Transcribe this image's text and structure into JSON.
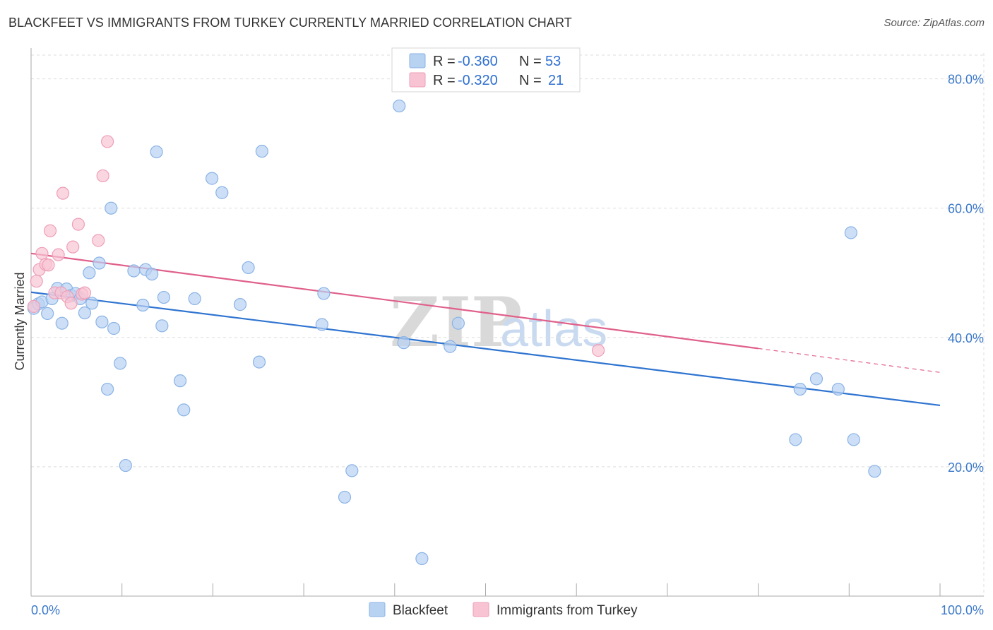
{
  "title": "BLACKFEET VS IMMIGRANTS FROM TURKEY CURRENTLY MARRIED CORRELATION CHART",
  "source": "Source: ZipAtlas.com",
  "watermark": {
    "zip": "ZIP",
    "atlas": "atlas"
  },
  "colors": {
    "blue_fill": "#b8d2f2",
    "blue_stroke": "#8ab3e6",
    "blue_line": "#2f74d0",
    "pink_fill": "#f8c4d4",
    "pink_stroke": "#ee9fb8",
    "pink_line": "#e0608a",
    "tick_text": "#3a78c9",
    "grid": "#dddddd"
  },
  "legend": {
    "series1": {
      "r_label": "R =",
      "r_value": "-0.360",
      "n_label": "N =",
      "n_value": "53"
    },
    "series2": {
      "r_label": "R =",
      "r_value": "-0.320",
      "n_label": "N =",
      "n_value": "21"
    }
  },
  "chart_data": {
    "type": "scatter",
    "title": "BLACKFEET VS IMMIGRANTS FROM TURKEY CURRENTLY MARRIED CORRELATION CHART",
    "xlabel": "",
    "ylabel": "Currently Married",
    "xlim": [
      0,
      100
    ],
    "ylim": [
      0,
      84
    ],
    "x_tick_labels": [
      "0.0%",
      "100.0%"
    ],
    "y_ticks": [
      20,
      40,
      60,
      80
    ],
    "y_tick_labels": [
      "20.0%",
      "40.0%",
      "60.0%",
      "80.0%"
    ],
    "grid": true,
    "legend_position": "top-center",
    "series": [
      {
        "name": "Blackfeet",
        "color": "#b8d2f2",
        "trend": {
          "x": [
            0,
            100
          ],
          "y": [
            47.0,
            29.5
          ]
        },
        "points": [
          {
            "x": 0.3,
            "y": 44.5
          },
          {
            "x": 0.8,
            "y": 45.2
          },
          {
            "x": 1.2,
            "y": 45.5
          },
          {
            "x": 1.8,
            "y": 43.7
          },
          {
            "x": 2.3,
            "y": 46.0
          },
          {
            "x": 2.9,
            "y": 47.6
          },
          {
            "x": 3.4,
            "y": 42.2
          },
          {
            "x": 3.9,
            "y": 47.5
          },
          {
            "x": 4.4,
            "y": 46.5
          },
          {
            "x": 4.9,
            "y": 46.8
          },
          {
            "x": 5.4,
            "y": 46.0
          },
          {
            "x": 5.9,
            "y": 43.8
          },
          {
            "x": 6.4,
            "y": 50.0
          },
          {
            "x": 6.7,
            "y": 45.3
          },
          {
            "x": 7.5,
            "y": 51.5
          },
          {
            "x": 7.8,
            "y": 42.4
          },
          {
            "x": 8.4,
            "y": 32.0
          },
          {
            "x": 8.8,
            "y": 60.0
          },
          {
            "x": 9.1,
            "y": 41.4
          },
          {
            "x": 9.8,
            "y": 36.0
          },
          {
            "x": 10.4,
            "y": 20.2
          },
          {
            "x": 11.3,
            "y": 50.3
          },
          {
            "x": 12.3,
            "y": 45.0
          },
          {
            "x": 12.6,
            "y": 50.5
          },
          {
            "x": 13.3,
            "y": 49.8
          },
          {
            "x": 13.8,
            "y": 68.7
          },
          {
            "x": 14.4,
            "y": 41.8
          },
          {
            "x": 14.6,
            "y": 46.2
          },
          {
            "x": 16.4,
            "y": 33.3
          },
          {
            "x": 16.8,
            "y": 28.8
          },
          {
            "x": 18.0,
            "y": 46.0
          },
          {
            "x": 19.9,
            "y": 64.6
          },
          {
            "x": 21.0,
            "y": 62.4
          },
          {
            "x": 23.0,
            "y": 45.1
          },
          {
            "x": 23.9,
            "y": 50.8
          },
          {
            "x": 25.1,
            "y": 36.2
          },
          {
            "x": 25.4,
            "y": 68.8
          },
          {
            "x": 32.0,
            "y": 42.0
          },
          {
            "x": 32.2,
            "y": 46.8
          },
          {
            "x": 34.5,
            "y": 15.3
          },
          {
            "x": 35.3,
            "y": 19.4
          },
          {
            "x": 40.5,
            "y": 75.8
          },
          {
            "x": 41.0,
            "y": 39.2
          },
          {
            "x": 43.0,
            "y": 5.8
          },
          {
            "x": 46.1,
            "y": 38.6
          },
          {
            "x": 47.0,
            "y": 42.2
          },
          {
            "x": 84.6,
            "y": 32.0
          },
          {
            "x": 86.4,
            "y": 33.6
          },
          {
            "x": 84.1,
            "y": 24.2
          },
          {
            "x": 88.8,
            "y": 32.0
          },
          {
            "x": 90.2,
            "y": 56.2
          },
          {
            "x": 90.5,
            "y": 24.2
          },
          {
            "x": 92.8,
            "y": 19.3
          }
        ]
      },
      {
        "name": "Immigrants from Turkey",
        "color": "#f8c4d4",
        "trend": {
          "x": [
            0,
            80
          ],
          "y": [
            53.0,
            38.3
          ]
        },
        "trend_dashed": {
          "x": [
            80,
            100
          ],
          "y": [
            38.3,
            34.6
          ]
        },
        "points": [
          {
            "x": 0.3,
            "y": 44.8
          },
          {
            "x": 0.6,
            "y": 48.7
          },
          {
            "x": 0.9,
            "y": 50.5
          },
          {
            "x": 1.2,
            "y": 53.0
          },
          {
            "x": 1.6,
            "y": 51.3
          },
          {
            "x": 1.9,
            "y": 51.2
          },
          {
            "x": 2.1,
            "y": 56.5
          },
          {
            "x": 2.6,
            "y": 46.9
          },
          {
            "x": 3.0,
            "y": 52.8
          },
          {
            "x": 3.3,
            "y": 46.9
          },
          {
            "x": 3.5,
            "y": 62.3
          },
          {
            "x": 4.0,
            "y": 46.3
          },
          {
            "x": 4.4,
            "y": 45.3
          },
          {
            "x": 4.6,
            "y": 54.0
          },
          {
            "x": 5.2,
            "y": 57.5
          },
          {
            "x": 5.6,
            "y": 46.7
          },
          {
            "x": 5.9,
            "y": 46.9
          },
          {
            "x": 7.4,
            "y": 55.0
          },
          {
            "x": 7.9,
            "y": 65.0
          },
          {
            "x": 8.4,
            "y": 70.3
          },
          {
            "x": 62.4,
            "y": 38.0
          }
        ]
      }
    ]
  }
}
